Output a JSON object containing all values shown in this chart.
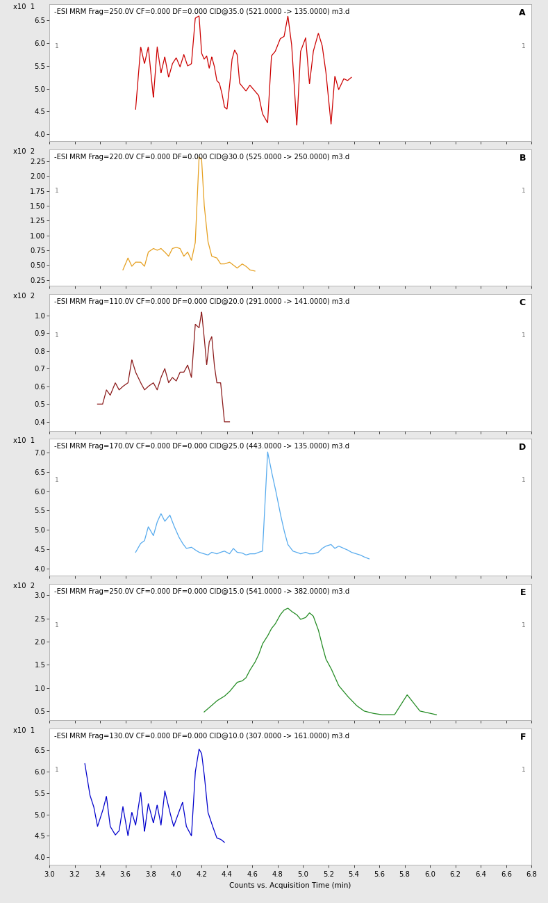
{
  "panels": [
    {
      "label": "A",
      "title": "-ESI MRM Frag=250.0V CF=0.000 DF=0.000 CID@35.0 (521.0000 -> 135.0000) m3.d",
      "color": "#cc0000",
      "exponent": "1",
      "yticks": [
        4.0,
        4.5,
        5.0,
        5.5,
        6.0,
        6.5
      ],
      "ylim": [
        3.85,
        6.85
      ],
      "signal_xstart": 3.68,
      "signal_xend": 5.38,
      "xrange": [
        3.0,
        6.8
      ],
      "x_vals": [
        3.68,
        3.72,
        3.75,
        3.78,
        3.82,
        3.85,
        3.88,
        3.91,
        3.94,
        3.97,
        4.0,
        4.03,
        4.06,
        4.09,
        4.12,
        4.15,
        4.18,
        4.2,
        4.22,
        4.24,
        4.26,
        4.28,
        4.3,
        4.32,
        4.34,
        4.36,
        4.38,
        4.4,
        4.42,
        4.44,
        4.46,
        4.48,
        4.5,
        4.52,
        4.55,
        4.58,
        4.62,
        4.65,
        4.68,
        4.72,
        4.75,
        4.78,
        4.82,
        4.85,
        4.88,
        4.91,
        4.95,
        4.98,
        5.02,
        5.05,
        5.08,
        5.12,
        5.15,
        5.18,
        5.22,
        5.25,
        5.28,
        5.32,
        5.35,
        5.38
      ],
      "y_vals": [
        4.55,
        5.92,
        5.55,
        5.92,
        4.8,
        5.92,
        5.35,
        5.7,
        5.25,
        5.55,
        5.68,
        5.48,
        5.75,
        5.5,
        5.55,
        6.55,
        6.6,
        5.78,
        5.65,
        5.72,
        5.45,
        5.7,
        5.5,
        5.18,
        5.12,
        4.9,
        4.6,
        4.55,
        5.05,
        5.65,
        5.85,
        5.75,
        5.12,
        5.05,
        4.95,
        5.08,
        4.95,
        4.85,
        4.45,
        4.25,
        5.72,
        5.82,
        6.1,
        6.15,
        6.6,
        5.95,
        4.18,
        5.82,
        6.12,
        5.1,
        5.82,
        6.22,
        5.95,
        5.35,
        4.22,
        5.28,
        4.98,
        5.22,
        5.18,
        5.25
      ]
    },
    {
      "label": "B",
      "title": "-ESI MRM Frag=220.0V CF=0.000 DF=0.000 CID@30.0 (525.0000 -> 250.0000) m3.d",
      "color": "#e6a020",
      "exponent": "2",
      "yticks": [
        0.25,
        0.5,
        0.75,
        1.0,
        1.25,
        1.5,
        1.75,
        2.0,
        2.25
      ],
      "ylim": [
        0.15,
        2.45
      ],
      "signal_xstart": 3.58,
      "signal_xend": 4.62,
      "xrange": [
        3.0,
        6.8
      ],
      "x_vals": [
        3.58,
        3.62,
        3.65,
        3.68,
        3.72,
        3.75,
        3.78,
        3.82,
        3.85,
        3.88,
        3.91,
        3.94,
        3.97,
        4.0,
        4.03,
        4.06,
        4.09,
        4.12,
        4.15,
        4.18,
        4.2,
        4.22,
        4.25,
        4.28,
        4.32,
        4.35,
        4.38,
        4.42,
        4.45,
        4.48,
        4.52,
        4.55,
        4.58,
        4.62
      ],
      "y_vals": [
        0.42,
        0.62,
        0.48,
        0.55,
        0.55,
        0.48,
        0.72,
        0.78,
        0.75,
        0.78,
        0.72,
        0.65,
        0.78,
        0.8,
        0.78,
        0.65,
        0.72,
        0.58,
        0.88,
        2.32,
        2.28,
        1.52,
        0.9,
        0.65,
        0.62,
        0.52,
        0.52,
        0.55,
        0.5,
        0.45,
        0.52,
        0.48,
        0.42,
        0.4
      ]
    },
    {
      "label": "C",
      "title": "-ESI MRM Frag=110.0V CF=0.000 DF=0.000 CID@20.0 (291.0000 -> 141.0000) m3.d",
      "color": "#8b1a1a",
      "exponent": "2",
      "yticks": [
        0.4,
        0.5,
        0.6,
        0.7,
        0.8,
        0.9,
        1.0
      ],
      "ylim": [
        0.35,
        1.12
      ],
      "signal_xstart": 3.38,
      "signal_xend": 4.42,
      "xrange": [
        3.0,
        6.8
      ],
      "x_vals": [
        3.38,
        3.42,
        3.45,
        3.48,
        3.52,
        3.55,
        3.58,
        3.62,
        3.65,
        3.68,
        3.72,
        3.75,
        3.78,
        3.82,
        3.85,
        3.88,
        3.91,
        3.94,
        3.97,
        4.0,
        4.03,
        4.06,
        4.09,
        4.12,
        4.15,
        4.18,
        4.2,
        4.22,
        4.24,
        4.26,
        4.28,
        4.3,
        4.32,
        4.35,
        4.38,
        4.42
      ],
      "y_vals": [
        0.5,
        0.5,
        0.58,
        0.55,
        0.62,
        0.58,
        0.6,
        0.62,
        0.75,
        0.68,
        0.62,
        0.58,
        0.6,
        0.62,
        0.58,
        0.65,
        0.7,
        0.62,
        0.65,
        0.63,
        0.68,
        0.68,
        0.72,
        0.65,
        0.95,
        0.93,
        1.02,
        0.88,
        0.72,
        0.85,
        0.88,
        0.72,
        0.62,
        0.62,
        0.4,
        0.4
      ]
    },
    {
      "label": "D",
      "title": "-ESI MRM Frag=170.0V CF=0.000 DF=0.000 CID@25.0 (443.0000 -> 135.0000) m3.d",
      "color": "#55aaee",
      "exponent": "1",
      "yticks": [
        4.0,
        4.5,
        5.0,
        5.5,
        6.0,
        6.5,
        7.0
      ],
      "ylim": [
        3.82,
        7.35
      ],
      "signal_xstart": 3.68,
      "signal_xend": 5.52,
      "xrange": [
        3.0,
        6.8
      ],
      "x_vals": [
        3.68,
        3.72,
        3.75,
        3.78,
        3.82,
        3.85,
        3.88,
        3.91,
        3.95,
        3.98,
        4.02,
        4.05,
        4.08,
        4.12,
        4.15,
        4.18,
        4.22,
        4.25,
        4.28,
        4.32,
        4.35,
        4.38,
        4.42,
        4.45,
        4.48,
        4.52,
        4.55,
        4.58,
        4.62,
        4.65,
        4.68,
        4.72,
        4.75,
        4.78,
        4.82,
        4.85,
        4.88,
        4.92,
        4.95,
        4.98,
        5.02,
        5.05,
        5.08,
        5.12,
        5.15,
        5.18,
        5.22,
        5.25,
        5.28,
        5.32,
        5.35,
        5.38,
        5.42,
        5.45,
        5.48,
        5.52
      ],
      "y_vals": [
        4.42,
        4.65,
        4.72,
        5.08,
        4.85,
        5.2,
        5.42,
        5.22,
        5.38,
        5.12,
        4.82,
        4.65,
        4.52,
        4.55,
        4.48,
        4.42,
        4.38,
        4.35,
        4.42,
        4.38,
        4.42,
        4.45,
        4.38,
        4.52,
        4.42,
        4.4,
        4.35,
        4.38,
        4.38,
        4.42,
        4.45,
        7.02,
        6.52,
        6.08,
        5.42,
        4.98,
        4.62,
        4.45,
        4.42,
        4.38,
        4.42,
        4.38,
        4.38,
        4.42,
        4.52,
        4.58,
        4.62,
        4.52,
        4.58,
        4.52,
        4.48,
        4.42,
        4.38,
        4.35,
        4.3,
        4.25
      ]
    },
    {
      "label": "E",
      "title": "-ESI MRM Frag=250.0V CF=0.000 DF=0.000 CID@15.0 (541.0000 -> 382.0000) m3.d",
      "color": "#228b22",
      "exponent": "2",
      "yticks": [
        0.5,
        1.0,
        1.5,
        2.0,
        2.5,
        3.0
      ],
      "ylim": [
        0.3,
        3.25
      ],
      "signal_xstart": 4.22,
      "signal_xend": 6.05,
      "xrange": [
        3.0,
        6.8
      ],
      "x_vals": [
        4.22,
        4.28,
        4.32,
        4.38,
        4.42,
        4.45,
        4.48,
        4.52,
        4.55,
        4.58,
        4.62,
        4.65,
        4.68,
        4.72,
        4.75,
        4.78,
        4.82,
        4.85,
        4.88,
        4.91,
        4.95,
        4.98,
        5.02,
        5.05,
        5.08,
        5.12,
        5.15,
        5.18,
        5.22,
        5.28,
        5.35,
        5.42,
        5.48,
        5.55,
        5.62,
        5.72,
        5.82,
        5.92,
        6.05
      ],
      "y_vals": [
        0.48,
        0.62,
        0.72,
        0.82,
        0.92,
        1.02,
        1.12,
        1.15,
        1.22,
        1.38,
        1.55,
        1.72,
        1.95,
        2.12,
        2.28,
        2.38,
        2.58,
        2.68,
        2.72,
        2.65,
        2.58,
        2.48,
        2.52,
        2.62,
        2.55,
        2.25,
        1.92,
        1.62,
        1.42,
        1.05,
        0.82,
        0.62,
        0.5,
        0.45,
        0.42,
        0.42,
        0.85,
        0.5,
        0.42
      ]
    },
    {
      "label": "F",
      "title": "-ESI MRM Frag=130.0V CF=0.000 DF=0.000 CID@10.0 (307.0000 -> 161.0000) m3.d",
      "color": "#0000cc",
      "exponent": "1",
      "yticks": [
        4.0,
        4.5,
        5.0,
        5.5,
        6.0,
        6.5
      ],
      "ylim": [
        3.82,
        7.0
      ],
      "signal_xstart": 3.28,
      "signal_xend": 4.38,
      "xrange": [
        3.0,
        6.8
      ],
      "x_vals": [
        3.28,
        3.32,
        3.35,
        3.38,
        3.42,
        3.45,
        3.48,
        3.52,
        3.55,
        3.58,
        3.62,
        3.65,
        3.68,
        3.72,
        3.75,
        3.78,
        3.82,
        3.85,
        3.88,
        3.91,
        3.95,
        3.98,
        4.02,
        4.05,
        4.08,
        4.12,
        4.15,
        4.18,
        4.2,
        4.22,
        4.25,
        4.28,
        4.32,
        4.35,
        4.38
      ],
      "y_vals": [
        6.18,
        5.45,
        5.18,
        4.72,
        5.08,
        5.42,
        4.72,
        4.52,
        4.62,
        5.18,
        4.5,
        5.05,
        4.75,
        5.52,
        4.6,
        5.25,
        4.8,
        5.22,
        4.75,
        5.55,
        5.05,
        4.72,
        5.05,
        5.28,
        4.72,
        4.5,
        5.98,
        6.52,
        6.42,
        5.95,
        5.05,
        4.78,
        4.45,
        4.42,
        4.35
      ]
    }
  ],
  "xlabel": "Counts vs. Acquisition Time (min)",
  "xticks": [
    3.0,
    3.2,
    3.4,
    3.6,
    3.8,
    4.0,
    4.2,
    4.4,
    4.6,
    4.8,
    5.0,
    5.2,
    5.4,
    5.6,
    5.8,
    6.0,
    6.2,
    6.4,
    6.6,
    6.8
  ],
  "background_color": "#e8e8e8",
  "panel_bg": "#ffffff",
  "title_fontsize": 7.2,
  "label_fontsize": 9,
  "tick_fontsize": 7.2
}
